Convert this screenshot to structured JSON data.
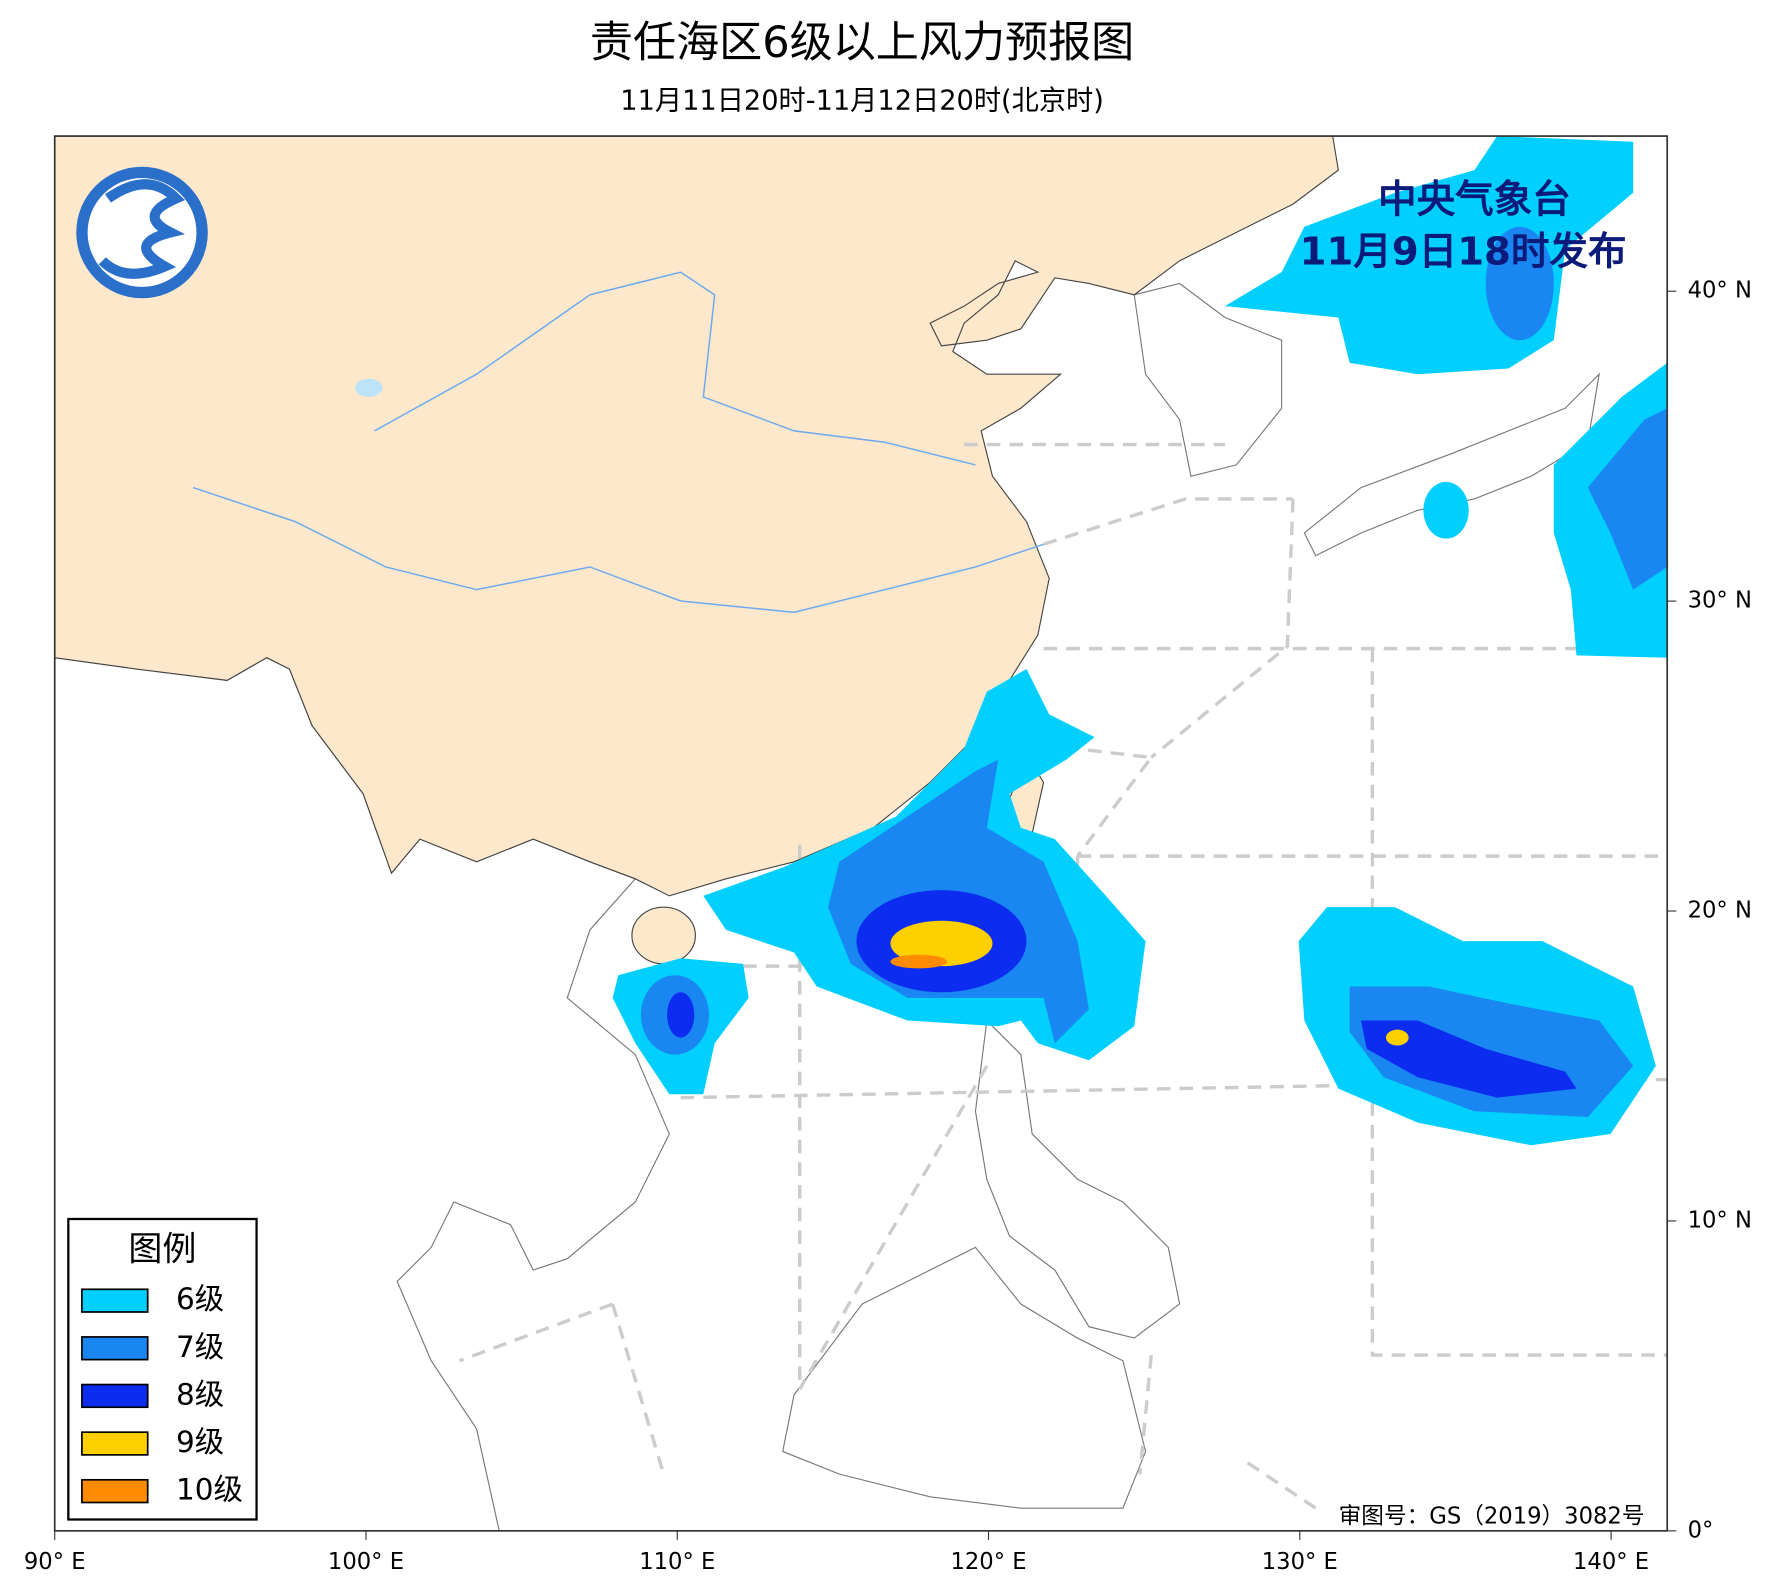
{
  "header": {
    "title": "责任海区6级以上风力预报图",
    "subtitle": "11月11日20时-11月12日20时(北京时)"
  },
  "issuer": {
    "agency": "中央气象台",
    "issue_time": "11月9日18时发布"
  },
  "legend": {
    "title": "图例",
    "items": [
      {
        "label": "6级",
        "color": "#00cfff"
      },
      {
        "label": "7级",
        "color": "#1a86f2"
      },
      {
        "label": "8级",
        "color": "#0c2cf0"
      },
      {
        "label": "9级",
        "color": "#ffd000"
      },
      {
        "label": "10级",
        "color": "#ff8c00"
      }
    ]
  },
  "axes": {
    "lon_labels": [
      "90° E",
      "100° E",
      "110° E",
      "120° E",
      "130° E",
      "140° E"
    ],
    "lat_labels": [
      "0°",
      "10° N",
      "20° N",
      "30° N",
      "40° N"
    ]
  },
  "map_approval": "审图号：GS（2019）3082号"
}
